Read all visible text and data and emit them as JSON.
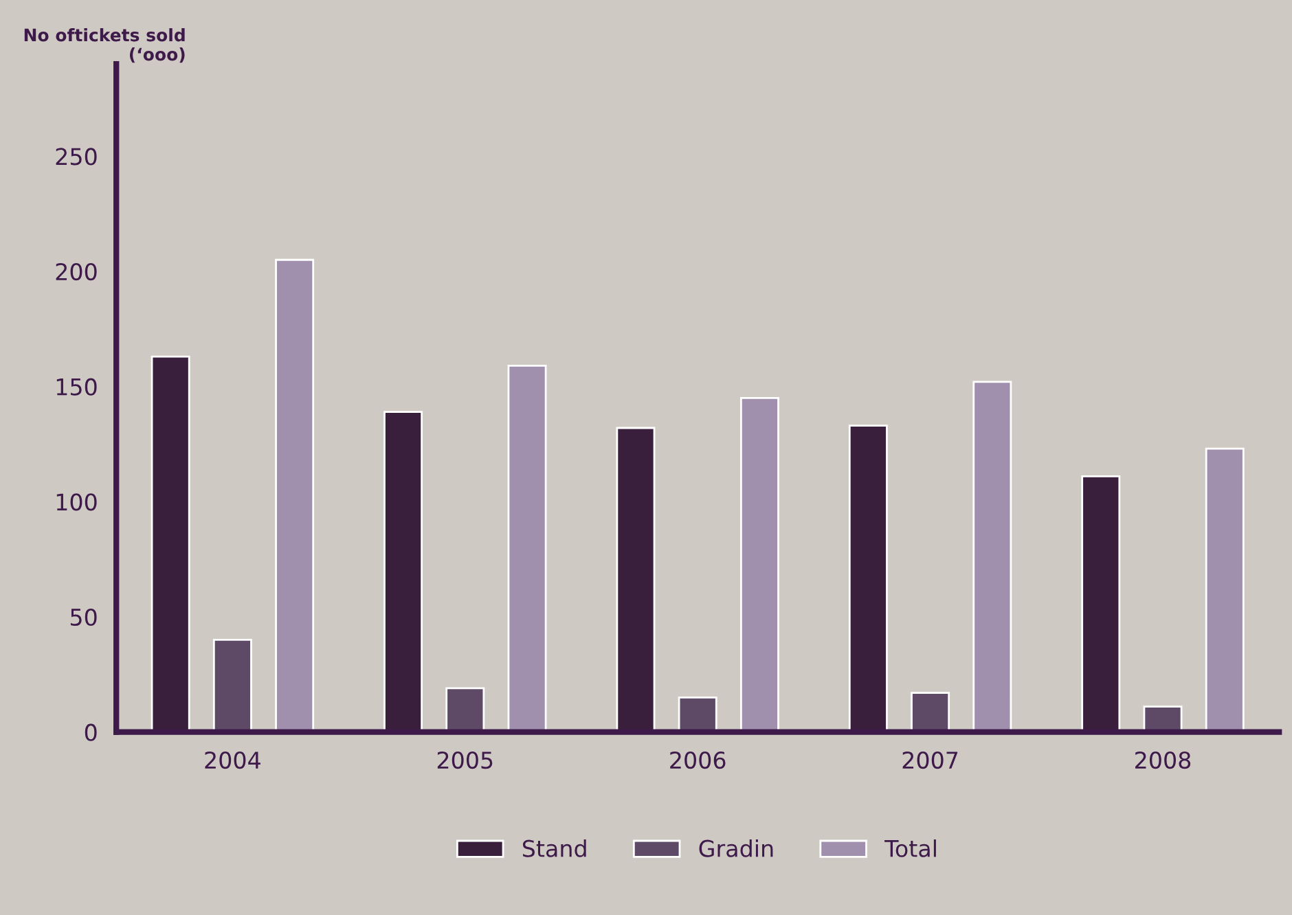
{
  "chart_data": {
    "type": "bar",
    "ylabel": "No oftickets sold\n(‘ooo)",
    "categories": [
      "2004",
      "2005",
      "2006",
      "2007",
      "2008"
    ],
    "series": [
      {
        "name": "Stand",
        "color": "#3a1f3d",
        "values": [
          163,
          139,
          132,
          133,
          111
        ]
      },
      {
        "name": "Gradin",
        "color": "#5e4a66",
        "values": [
          40,
          19,
          15,
          17,
          11
        ]
      },
      {
        "name": "Total",
        "color": "#a090ae",
        "values": [
          205,
          159,
          145,
          152,
          123
        ]
      }
    ],
    "ylim": [
      0,
      290
    ],
    "yticks": [
      0,
      50,
      100,
      150,
      200,
      250
    ],
    "grid": false,
    "legend": "bottom"
  }
}
